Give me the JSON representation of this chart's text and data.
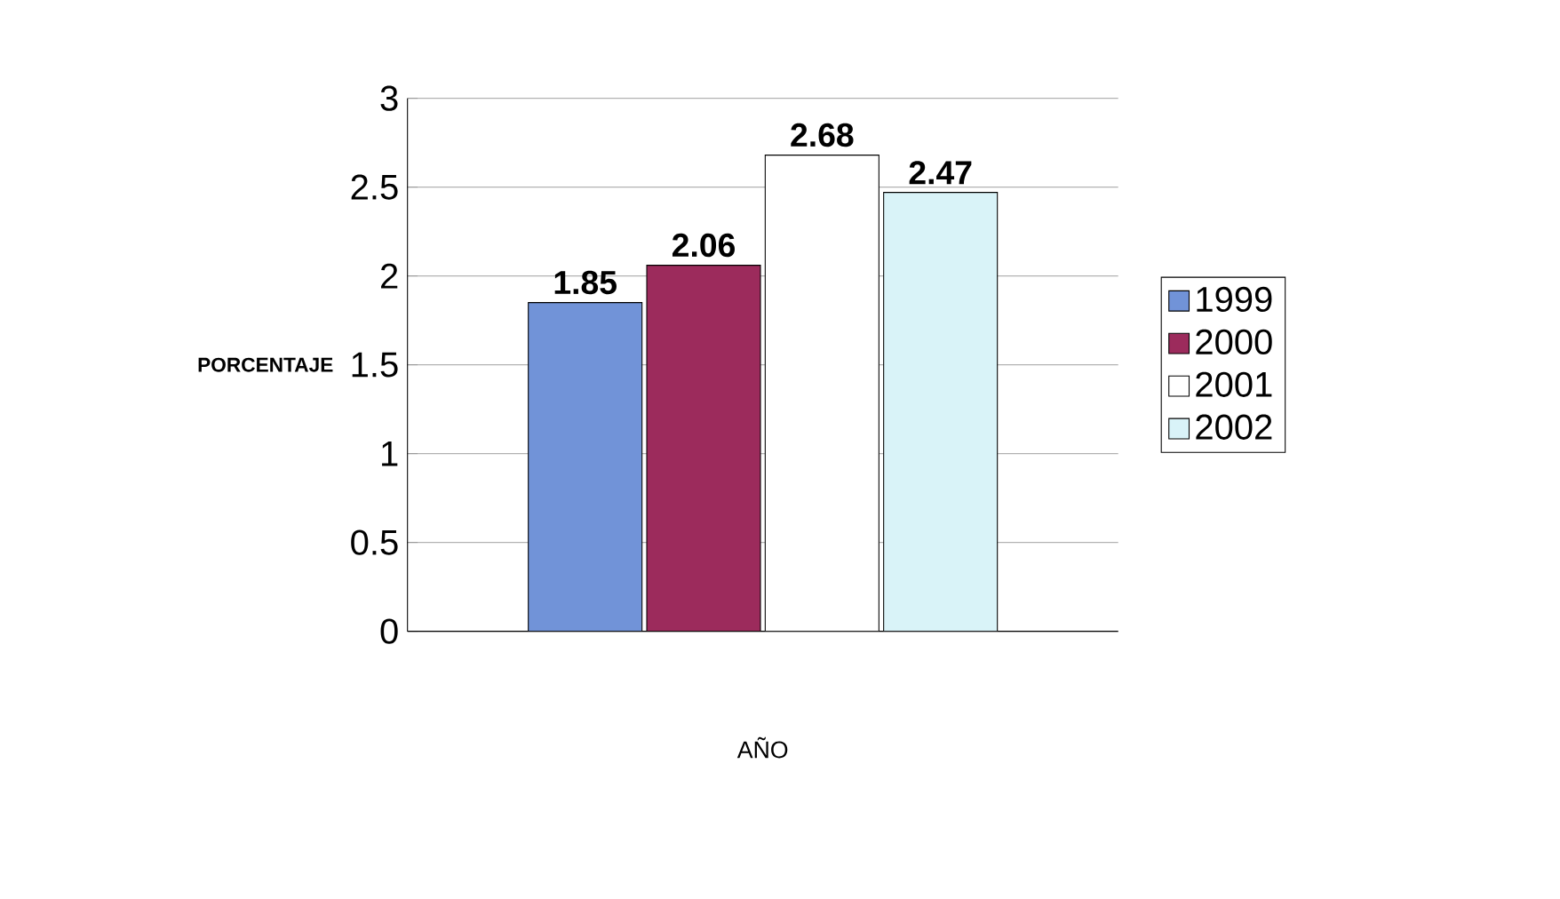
{
  "chart_data": {
    "type": "bar",
    "xlabel": "AÑO",
    "ylabel": "PORCENTAJE",
    "categories": [
      null
    ],
    "series": [
      {
        "name": "1999",
        "color": "#7193d8",
        "values": [
          1.85
        ]
      },
      {
        "name": "2000",
        "color": "#9c2b5c",
        "values": [
          2.06
        ]
      },
      {
        "name": "2001",
        "color": "#ffffff",
        "values": [
          2.68
        ]
      },
      {
        "name": "2002",
        "color": "#d9f3f8",
        "values": [
          2.47
        ]
      }
    ],
    "ylim": [
      0,
      3
    ],
    "yticks": [
      0,
      0.5,
      1,
      1.5,
      2,
      2.5,
      3
    ],
    "grid": "y",
    "legend": "right",
    "data_labels": true
  }
}
